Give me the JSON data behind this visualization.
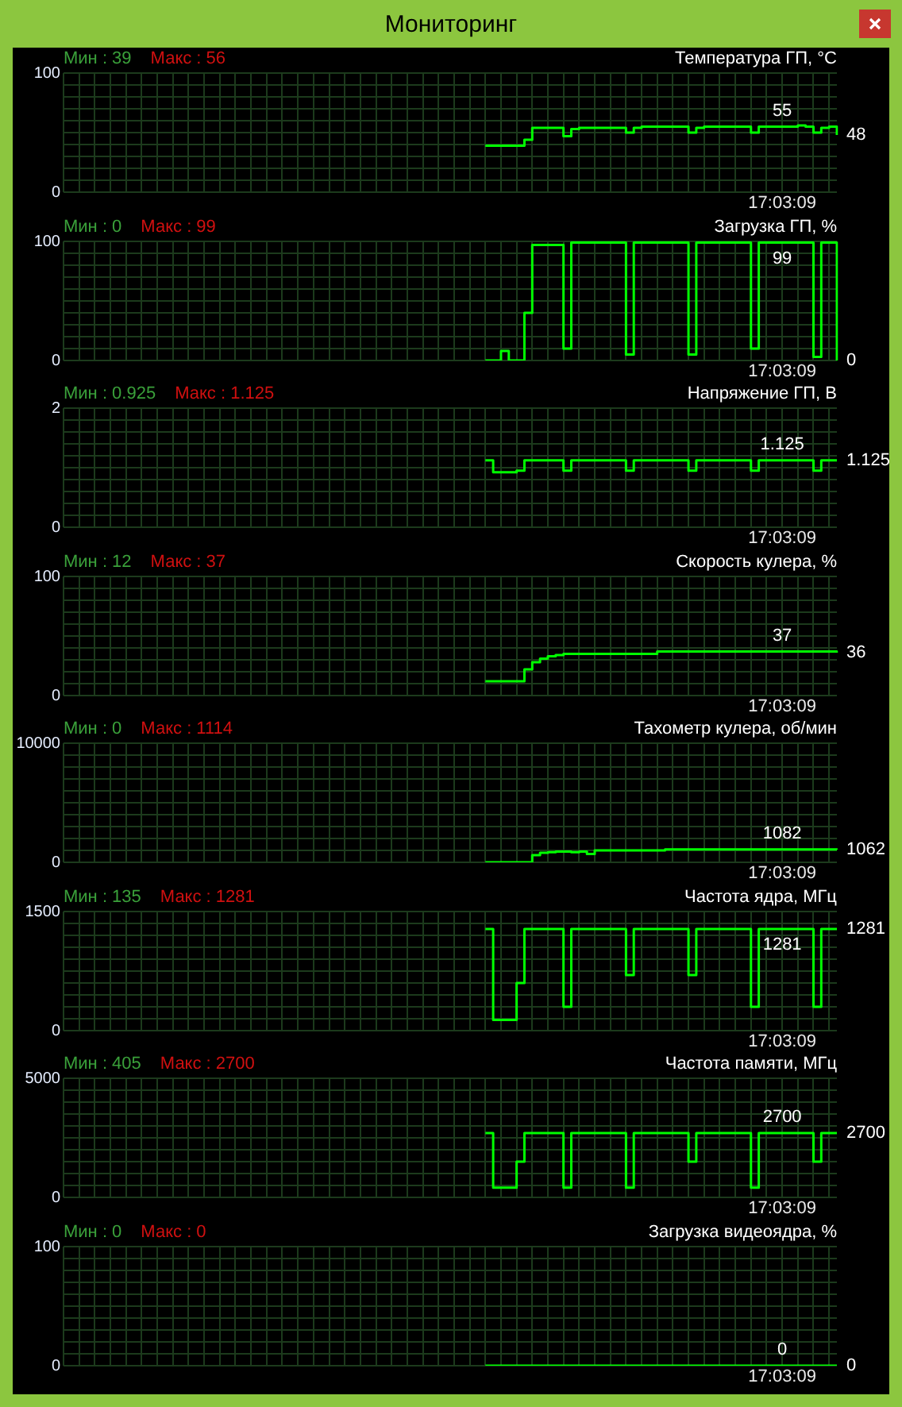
{
  "chart_data": [
    {
      "type": "other",
      "title": "Мониторинг"
    },
    {
      "type": "step",
      "title": "Температура ГП, °C",
      "categories": [
        null,
        null,
        null,
        null,
        null,
        null,
        null,
        null,
        null,
        null,
        null,
        null,
        null,
        null,
        null,
        null,
        null,
        null,
        null,
        null,
        null,
        null,
        null,
        null,
        null,
        null,
        null,
        null,
        null,
        null,
        null,
        null,
        null,
        null,
        null,
        null,
        null,
        null,
        null,
        null,
        null,
        null,
        null,
        null,
        null,
        null,
        null,
        null,
        null,
        null,
        null,
        null,
        null,
        null,
        null,
        null,
        null,
        null,
        null,
        null,
        null,
        null,
        null,
        null,
        null,
        null,
        null,
        null,
        null,
        null,
        null,
        null,
        null,
        null,
        null,
        null,
        null,
        null,
        null,
        null,
        null,
        null,
        null,
        null,
        null,
        null,
        null,
        null,
        null,
        null,
        null,
        null,
        null,
        null,
        null,
        null,
        null,
        null,
        null,
        null
      ],
      "series": [
        {
          "color": "#00ff00",
          "values": [
            null,
            null,
            null,
            null,
            null,
            null,
            null,
            null,
            null,
            null,
            null,
            null,
            null,
            null,
            null,
            null,
            null,
            null,
            null,
            null,
            null,
            null,
            null,
            null,
            null,
            null,
            null,
            null,
            null,
            null,
            null,
            null,
            null,
            null,
            null,
            null,
            null,
            null,
            null,
            null,
            null,
            null,
            null,
            null,
            null,
            null,
            null,
            null,
            null,
            null,
            null,
            null,
            null,
            null,
            39,
            39,
            39,
            39,
            39,
            44,
            54,
            54,
            54,
            54,
            47,
            53,
            54,
            54,
            54,
            54,
            54,
            54,
            50,
            54,
            55,
            55,
            55,
            55,
            55,
            55,
            50,
            54,
            55,
            55,
            55,
            55,
            55,
            55,
            50,
            55,
            55,
            55,
            55,
            55,
            56,
            55,
            50,
            54,
            55,
            48
          ]
        }
      ],
      "ylim": [
        0,
        100
      ],
      "yticks": [
        0,
        {
          "value": 10,
          "label": null
        },
        {
          "value": 20,
          "label": null
        },
        {
          "value": 30,
          "label": null
        },
        {
          "value": 40,
          "label": null
        },
        {
          "value": 50,
          "label": null
        },
        {
          "value": 60,
          "label": null
        },
        {
          "value": 70,
          "label": null
        },
        {
          "value": 80,
          "label": null
        },
        {
          "value": 90,
          "label": null
        },
        100
      ],
      "grid": true,
      "tick_labels": "y",
      "annotations": [
        "Мин : 39",
        "Макс : 56",
        "17:03:09",
        "55",
        "48"
      ]
    },
    {
      "type": "step",
      "title": "Загрузка ГП, %",
      "categories": [
        null,
        null,
        null,
        null,
        null,
        null,
        null,
        null,
        null,
        null,
        null,
        null,
        null,
        null,
        null,
        null,
        null,
        null,
        null,
        null,
        null,
        null,
        null,
        null,
        null,
        null,
        null,
        null,
        null,
        null,
        null,
        null,
        null,
        null,
        null,
        null,
        null,
        null,
        null,
        null,
        null,
        null,
        null,
        null,
        null,
        null,
        null,
        null,
        null,
        null,
        null,
        null,
        null,
        null,
        null,
        null,
        null,
        null,
        null,
        null,
        null,
        null,
        null,
        null,
        null,
        null,
        null,
        null,
        null,
        null,
        null,
        null,
        null,
        null,
        null,
        null,
        null,
        null,
        null,
        null,
        null,
        null,
        null,
        null,
        null,
        null,
        null,
        null,
        null,
        null,
        null,
        null,
        null,
        null,
        null,
        null,
        null,
        null,
        null,
        null
      ],
      "series": [
        {
          "color": "#00ff00",
          "values": [
            null,
            null,
            null,
            null,
            null,
            null,
            null,
            null,
            null,
            null,
            null,
            null,
            null,
            null,
            null,
            null,
            null,
            null,
            null,
            null,
            null,
            null,
            null,
            null,
            null,
            null,
            null,
            null,
            null,
            null,
            null,
            null,
            null,
            null,
            null,
            null,
            null,
            null,
            null,
            null,
            null,
            null,
            null,
            null,
            null,
            null,
            null,
            null,
            null,
            null,
            null,
            null,
            null,
            null,
            0,
            0,
            8,
            0,
            0,
            40,
            97,
            97,
            97,
            97,
            10,
            99,
            99,
            99,
            99,
            99,
            99,
            99,
            5,
            99,
            99,
            99,
            99,
            99,
            99,
            99,
            5,
            99,
            99,
            99,
            99,
            99,
            99,
            99,
            10,
            99,
            99,
            99,
            99,
            99,
            99,
            99,
            3,
            99,
            99,
            0
          ]
        }
      ],
      "ylim": [
        0,
        100
      ],
      "yticks": [
        0,
        {
          "value": 10,
          "label": null
        },
        {
          "value": 20,
          "label": null
        },
        {
          "value": 30,
          "label": null
        },
        {
          "value": 40,
          "label": null
        },
        {
          "value": 50,
          "label": null
        },
        {
          "value": 60,
          "label": null
        },
        {
          "value": 70,
          "label": null
        },
        {
          "value": 80,
          "label": null
        },
        {
          "value": 90,
          "label": null
        },
        100
      ],
      "grid": true,
      "tick_labels": "y",
      "annotations": [
        "Мин : 0",
        "Макс : 99",
        "17:03:09",
        "99",
        "0"
      ]
    },
    {
      "type": "step",
      "title": "Напряжение ГП, В",
      "categories": [
        null,
        null,
        null,
        null,
        null,
        null,
        null,
        null,
        null,
        null,
        null,
        null,
        null,
        null,
        null,
        null,
        null,
        null,
        null,
        null,
        null,
        null,
        null,
        null,
        null,
        null,
        null,
        null,
        null,
        null,
        null,
        null,
        null,
        null,
        null,
        null,
        null,
        null,
        null,
        null,
        null,
        null,
        null,
        null,
        null,
        null,
        null,
        null,
        null,
        null,
        null,
        null,
        null,
        null,
        null,
        null,
        null,
        null,
        null,
        null,
        null,
        null,
        null,
        null,
        null,
        null,
        null,
        null,
        null,
        null,
        null,
        null,
        null,
        null,
        null,
        null,
        null,
        null,
        null,
        null,
        null,
        null,
        null,
        null,
        null,
        null,
        null,
        null,
        null,
        null,
        null,
        null,
        null,
        null,
        null,
        null,
        null,
        null,
        null,
        null
      ],
      "series": [
        {
          "color": "#00ff00",
          "values": [
            null,
            null,
            null,
            null,
            null,
            null,
            null,
            null,
            null,
            null,
            null,
            null,
            null,
            null,
            null,
            null,
            null,
            null,
            null,
            null,
            null,
            null,
            null,
            null,
            null,
            null,
            null,
            null,
            null,
            null,
            null,
            null,
            null,
            null,
            null,
            null,
            null,
            null,
            null,
            null,
            null,
            null,
            null,
            null,
            null,
            null,
            null,
            null,
            null,
            null,
            null,
            null,
            null,
            null,
            1.125,
            0.925,
            0.925,
            0.925,
            0.95,
            1.125,
            1.125,
            1.125,
            1.125,
            1.125,
            0.95,
            1.125,
            1.125,
            1.125,
            1.125,
            1.125,
            1.125,
            1.125,
            0.95,
            1.125,
            1.125,
            1.125,
            1.125,
            1.125,
            1.125,
            1.125,
            0.95,
            1.125,
            1.125,
            1.125,
            1.125,
            1.125,
            1.125,
            1.125,
            0.95,
            1.125,
            1.125,
            1.125,
            1.125,
            1.125,
            1.125,
            1.125,
            0.95,
            1.125,
            1.125,
            1.125
          ]
        }
      ],
      "ylim": [
        0,
        2
      ],
      "yticks": [
        0,
        {
          "value": 0.2,
          "label": null
        },
        {
          "value": 0.4,
          "label": null
        },
        {
          "value": 0.6,
          "label": null
        },
        {
          "value": 0.8,
          "label": null
        },
        {
          "value": 1,
          "label": null
        },
        {
          "value": 1.2,
          "label": null
        },
        {
          "value": 1.4,
          "label": null
        },
        {
          "value": 1.6,
          "label": null
        },
        {
          "value": 1.8,
          "label": null
        },
        2
      ],
      "grid": true,
      "tick_labels": "y",
      "annotations": [
        "Мин : 0.925",
        "Макс : 1.125",
        "17:03:09",
        "1.125",
        "1.125"
      ]
    },
    {
      "type": "step",
      "title": "Скорость кулера, %",
      "categories": [
        null,
        null,
        null,
        null,
        null,
        null,
        null,
        null,
        null,
        null,
        null,
        null,
        null,
        null,
        null,
        null,
        null,
        null,
        null,
        null,
        null,
        null,
        null,
        null,
        null,
        null,
        null,
        null,
        null,
        null,
        null,
        null,
        null,
        null,
        null,
        null,
        null,
        null,
        null,
        null,
        null,
        null,
        null,
        null,
        null,
        null,
        null,
        null,
        null,
        null,
        null,
        null,
        null,
        null,
        null,
        null,
        null,
        null,
        null,
        null,
        null,
        null,
        null,
        null,
        null,
        null,
        null,
        null,
        null,
        null,
        null,
        null,
        null,
        null,
        null,
        null,
        null,
        null,
        null,
        null,
        null,
        null,
        null,
        null,
        null,
        null,
        null,
        null,
        null,
        null,
        null,
        null,
        null,
        null,
        null,
        null,
        null,
        null,
        null,
        null
      ],
      "series": [
        {
          "color": "#00ff00",
          "values": [
            null,
            null,
            null,
            null,
            null,
            null,
            null,
            null,
            null,
            null,
            null,
            null,
            null,
            null,
            null,
            null,
            null,
            null,
            null,
            null,
            null,
            null,
            null,
            null,
            null,
            null,
            null,
            null,
            null,
            null,
            null,
            null,
            null,
            null,
            null,
            null,
            null,
            null,
            null,
            null,
            null,
            null,
            null,
            null,
            null,
            null,
            null,
            null,
            null,
            null,
            null,
            null,
            null,
            null,
            12,
            12,
            12,
            12,
            12,
            22,
            28,
            31,
            33,
            34,
            35,
            35,
            35,
            35,
            35,
            35,
            35,
            35,
            35,
            35,
            35,
            35,
            37,
            37,
            37,
            37,
            37,
            37,
            37,
            37,
            37,
            37,
            37,
            37,
            37,
            37,
            37,
            37,
            37,
            37,
            37,
            37,
            37,
            37,
            37,
            36
          ]
        }
      ],
      "ylim": [
        0,
        100
      ],
      "yticks": [
        0,
        {
          "value": 10,
          "label": null
        },
        {
          "value": 20,
          "label": null
        },
        {
          "value": 30,
          "label": null
        },
        {
          "value": 40,
          "label": null
        },
        {
          "value": 50,
          "label": null
        },
        {
          "value": 60,
          "label": null
        },
        {
          "value": 70,
          "label": null
        },
        {
          "value": 80,
          "label": null
        },
        {
          "value": 90,
          "label": null
        },
        100
      ],
      "grid": true,
      "tick_labels": "y",
      "annotations": [
        "Мин : 12",
        "Макс : 37",
        "17:03:09",
        "37",
        "36"
      ]
    },
    {
      "type": "step",
      "title": "Тахометр кулера, об/мин",
      "categories": [
        null,
        null,
        null,
        null,
        null,
        null,
        null,
        null,
        null,
        null,
        null,
        null,
        null,
        null,
        null,
        null,
        null,
        null,
        null,
        null,
        null,
        null,
        null,
        null,
        null,
        null,
        null,
        null,
        null,
        null,
        null,
        null,
        null,
        null,
        null,
        null,
        null,
        null,
        null,
        null,
        null,
        null,
        null,
        null,
        null,
        null,
        null,
        null,
        null,
        null,
        null,
        null,
        null,
        null,
        null,
        null,
        null,
        null,
        null,
        null,
        null,
        null,
        null,
        null,
        null,
        null,
        null,
        null,
        null,
        null,
        null,
        null,
        null,
        null,
        null,
        null,
        null,
        null,
        null,
        null,
        null,
        null,
        null,
        null,
        null,
        null,
        null,
        null,
        null,
        null,
        null,
        null,
        null,
        null,
        null,
        null,
        null,
        null,
        null,
        null
      ],
      "series": [
        {
          "color": "#00ff00",
          "values": [
            null,
            null,
            null,
            null,
            null,
            null,
            null,
            null,
            null,
            null,
            null,
            null,
            null,
            null,
            null,
            null,
            null,
            null,
            null,
            null,
            null,
            null,
            null,
            null,
            null,
            null,
            null,
            null,
            null,
            null,
            null,
            null,
            null,
            null,
            null,
            null,
            null,
            null,
            null,
            null,
            null,
            null,
            null,
            null,
            null,
            null,
            null,
            null,
            null,
            null,
            null,
            null,
            null,
            null,
            0,
            0,
            0,
            0,
            0,
            0,
            600,
            800,
            850,
            900,
            900,
            850,
            900,
            700,
            1000,
            1000,
            1000,
            1000,
            1000,
            1000,
            1000,
            1000,
            1000,
            1082,
            1082,
            1082,
            1082,
            1082,
            1082,
            1082,
            1082,
            1082,
            1082,
            1082,
            1082,
            1082,
            1082,
            1082,
            1082,
            1082,
            1082,
            1082,
            1082,
            1082,
            1082,
            1062
          ]
        }
      ],
      "ylim": [
        0,
        10000
      ],
      "yticks": [
        0,
        {
          "value": 1000,
          "label": null
        },
        {
          "value": 2000,
          "label": null
        },
        {
          "value": 3000,
          "label": null
        },
        {
          "value": 4000,
          "label": null
        },
        {
          "value": 5000,
          "label": null
        },
        {
          "value": 6000,
          "label": null
        },
        {
          "value": 7000,
          "label": null
        },
        {
          "value": 8000,
          "label": null
        },
        {
          "value": 9000,
          "label": null
        },
        10000
      ],
      "grid": true,
      "tick_labels": "y",
      "annotations": [
        "Мин : 0",
        "Макс : 1114",
        "17:03:09",
        "1082",
        "1062"
      ]
    },
    {
      "type": "step",
      "title": "Частота ядра, МГц",
      "categories": [
        null,
        null,
        null,
        null,
        null,
        null,
        null,
        null,
        null,
        null,
        null,
        null,
        null,
        null,
        null,
        null,
        null,
        null,
        null,
        null,
        null,
        null,
        null,
        null,
        null,
        null,
        null,
        null,
        null,
        null,
        null,
        null,
        null,
        null,
        null,
        null,
        null,
        null,
        null,
        null,
        null,
        null,
        null,
        null,
        null,
        null,
        null,
        null,
        null,
        null,
        null,
        null,
        null,
        null,
        null,
        null,
        null,
        null,
        null,
        null,
        null,
        null,
        null,
        null,
        null,
        null,
        null,
        null,
        null,
        null,
        null,
        null,
        null,
        null,
        null,
        null,
        null,
        null,
        null,
        null,
        null,
        null,
        null,
        null,
        null,
        null,
        null,
        null,
        null,
        null,
        null,
        null,
        null,
        null,
        null,
        null,
        null,
        null,
        null,
        null
      ],
      "series": [
        {
          "color": "#00ff00",
          "values": [
            null,
            null,
            null,
            null,
            null,
            null,
            null,
            null,
            null,
            null,
            null,
            null,
            null,
            null,
            null,
            null,
            null,
            null,
            null,
            null,
            null,
            null,
            null,
            null,
            null,
            null,
            null,
            null,
            null,
            null,
            null,
            null,
            null,
            null,
            null,
            null,
            null,
            null,
            null,
            null,
            null,
            null,
            null,
            null,
            null,
            null,
            null,
            null,
            null,
            null,
            null,
            null,
            null,
            null,
            1281,
            135,
            135,
            135,
            600,
            1281,
            1281,
            1281,
            1281,
            1281,
            300,
            1281,
            1281,
            1281,
            1281,
            1281,
            1281,
            1281,
            700,
            1281,
            1281,
            1281,
            1281,
            1281,
            1281,
            1281,
            700,
            1281,
            1281,
            1281,
            1281,
            1281,
            1281,
            1281,
            300,
            1281,
            1281,
            1281,
            1281,
            1281,
            1281,
            1281,
            300,
            1281,
            1281,
            1281
          ]
        }
      ],
      "ylim": [
        0,
        1500
      ],
      "yticks": [
        0,
        {
          "value": 150,
          "label": null
        },
        {
          "value": 300,
          "label": null
        },
        {
          "value": 450,
          "label": null
        },
        {
          "value": 600,
          "label": null
        },
        {
          "value": 750,
          "label": null
        },
        {
          "value": 900,
          "label": null
        },
        {
          "value": 1050,
          "label": null
        },
        {
          "value": 1200,
          "label": null
        },
        {
          "value": 1350,
          "label": null
        },
        1500
      ],
      "grid": true,
      "tick_labels": "y",
      "annotations": [
        "Мин : 135",
        "Макс : 1281",
        "17:03:09",
        "1281",
        "1281"
      ]
    },
    {
      "type": "step",
      "title": "Частота памяти, МГц",
      "categories": [
        null,
        null,
        null,
        null,
        null,
        null,
        null,
        null,
        null,
        null,
        null,
        null,
        null,
        null,
        null,
        null,
        null,
        null,
        null,
        null,
        null,
        null,
        null,
        null,
        null,
        null,
        null,
        null,
        null,
        null,
        null,
        null,
        null,
        null,
        null,
        null,
        null,
        null,
        null,
        null,
        null,
        null,
        null,
        null,
        null,
        null,
        null,
        null,
        null,
        null,
        null,
        null,
        null,
        null,
        null,
        null,
        null,
        null,
        null,
        null,
        null,
        null,
        null,
        null,
        null,
        null,
        null,
        null,
        null,
        null,
        null,
        null,
        null,
        null,
        null,
        null,
        null,
        null,
        null,
        null,
        null,
        null,
        null,
        null,
        null,
        null,
        null,
        null,
        null,
        null,
        null,
        null,
        null,
        null,
        null,
        null,
        null,
        null,
        null,
        null
      ],
      "series": [
        {
          "color": "#00ff00",
          "values": [
            null,
            null,
            null,
            null,
            null,
            null,
            null,
            null,
            null,
            null,
            null,
            null,
            null,
            null,
            null,
            null,
            null,
            null,
            null,
            null,
            null,
            null,
            null,
            null,
            null,
            null,
            null,
            null,
            null,
            null,
            null,
            null,
            null,
            null,
            null,
            null,
            null,
            null,
            null,
            null,
            null,
            null,
            null,
            null,
            null,
            null,
            null,
            null,
            null,
            null,
            null,
            null,
            null,
            null,
            2700,
            405,
            405,
            405,
            1500,
            2700,
            2700,
            2700,
            2700,
            2700,
            405,
            2700,
            2700,
            2700,
            2700,
            2700,
            2700,
            2700,
            405,
            2700,
            2700,
            2700,
            2700,
            2700,
            2700,
            2700,
            1500,
            2700,
            2700,
            2700,
            2700,
            2700,
            2700,
            2700,
            405,
            2700,
            2700,
            2700,
            2700,
            2700,
            2700,
            2700,
            1500,
            2700,
            2700,
            2700
          ]
        }
      ],
      "ylim": [
        0,
        5000
      ],
      "yticks": [
        0,
        {
          "value": 500,
          "label": null
        },
        {
          "value": 1000,
          "label": null
        },
        {
          "value": 1500,
          "label": null
        },
        {
          "value": 2000,
          "label": null
        },
        {
          "value": 2500,
          "label": null
        },
        {
          "value": 3000,
          "label": null
        },
        {
          "value": 3500,
          "label": null
        },
        {
          "value": 4000,
          "label": null
        },
        {
          "value": 4500,
          "label": null
        },
        5000
      ],
      "grid": true,
      "tick_labels": "y",
      "annotations": [
        "Мин : 405",
        "Макс : 2700",
        "17:03:09",
        "2700",
        "2700"
      ]
    },
    {
      "type": "step",
      "title": "Загрузка видеоядра, %",
      "categories": [
        null,
        null,
        null,
        null,
        null,
        null,
        null,
        null,
        null,
        null,
        null,
        null,
        null,
        null,
        null,
        null,
        null,
        null,
        null,
        null,
        null,
        null,
        null,
        null,
        null,
        null,
        null,
        null,
        null,
        null,
        null,
        null,
        null,
        null,
        null,
        null,
        null,
        null,
        null,
        null,
        null,
        null,
        null,
        null,
        null,
        null,
        null,
        null,
        null,
        null,
        null,
        null,
        null,
        null,
        null,
        null,
        null,
        null,
        null,
        null,
        null,
        null,
        null,
        null,
        null,
        null,
        null,
        null,
        null,
        null,
        null,
        null,
        null,
        null,
        null,
        null,
        null,
        null,
        null,
        null,
        null,
        null,
        null,
        null,
        null,
        null,
        null,
        null,
        null,
        null,
        null,
        null,
        null,
        null,
        null,
        null,
        null,
        null,
        null,
        null
      ],
      "series": [
        {
          "color": "#00ff00",
          "values": [
            null,
            null,
            null,
            null,
            null,
            null,
            null,
            null,
            null,
            null,
            null,
            null,
            null,
            null,
            null,
            null,
            null,
            null,
            null,
            null,
            null,
            null,
            null,
            null,
            null,
            null,
            null,
            null,
            null,
            null,
            null,
            null,
            null,
            null,
            null,
            null,
            null,
            null,
            null,
            null,
            null,
            null,
            null,
            null,
            null,
            null,
            null,
            null,
            null,
            null,
            null,
            null,
            null,
            null,
            0,
            0,
            0,
            0,
            0,
            0,
            0,
            0,
            0,
            0,
            0,
            0,
            0,
            0,
            0,
            0,
            0,
            0,
            0,
            0,
            0,
            0,
            0,
            0,
            0,
            0,
            0,
            0,
            0,
            0,
            0,
            0,
            0,
            0,
            0,
            0,
            0,
            0,
            0,
            0,
            0,
            0,
            0,
            0,
            0,
            0
          ]
        }
      ],
      "ylim": [
        0,
        100
      ],
      "yticks": [
        0,
        {
          "value": 10,
          "label": null
        },
        {
          "value": 20,
          "label": null
        },
        {
          "value": 30,
          "label": null
        },
        {
          "value": 40,
          "label": null
        },
        {
          "value": 50,
          "label": null
        },
        {
          "value": 60,
          "label": null
        },
        {
          "value": 70,
          "label": null
        },
        {
          "value": 80,
          "label": null
        },
        {
          "value": 90,
          "label": null
        },
        100
      ],
      "grid": true,
      "tick_labels": "y",
      "annotations": [
        "Мин : 0",
        "Макс : 0",
        "17:03:09",
        "0",
        "0"
      ]
    }
  ]
}
